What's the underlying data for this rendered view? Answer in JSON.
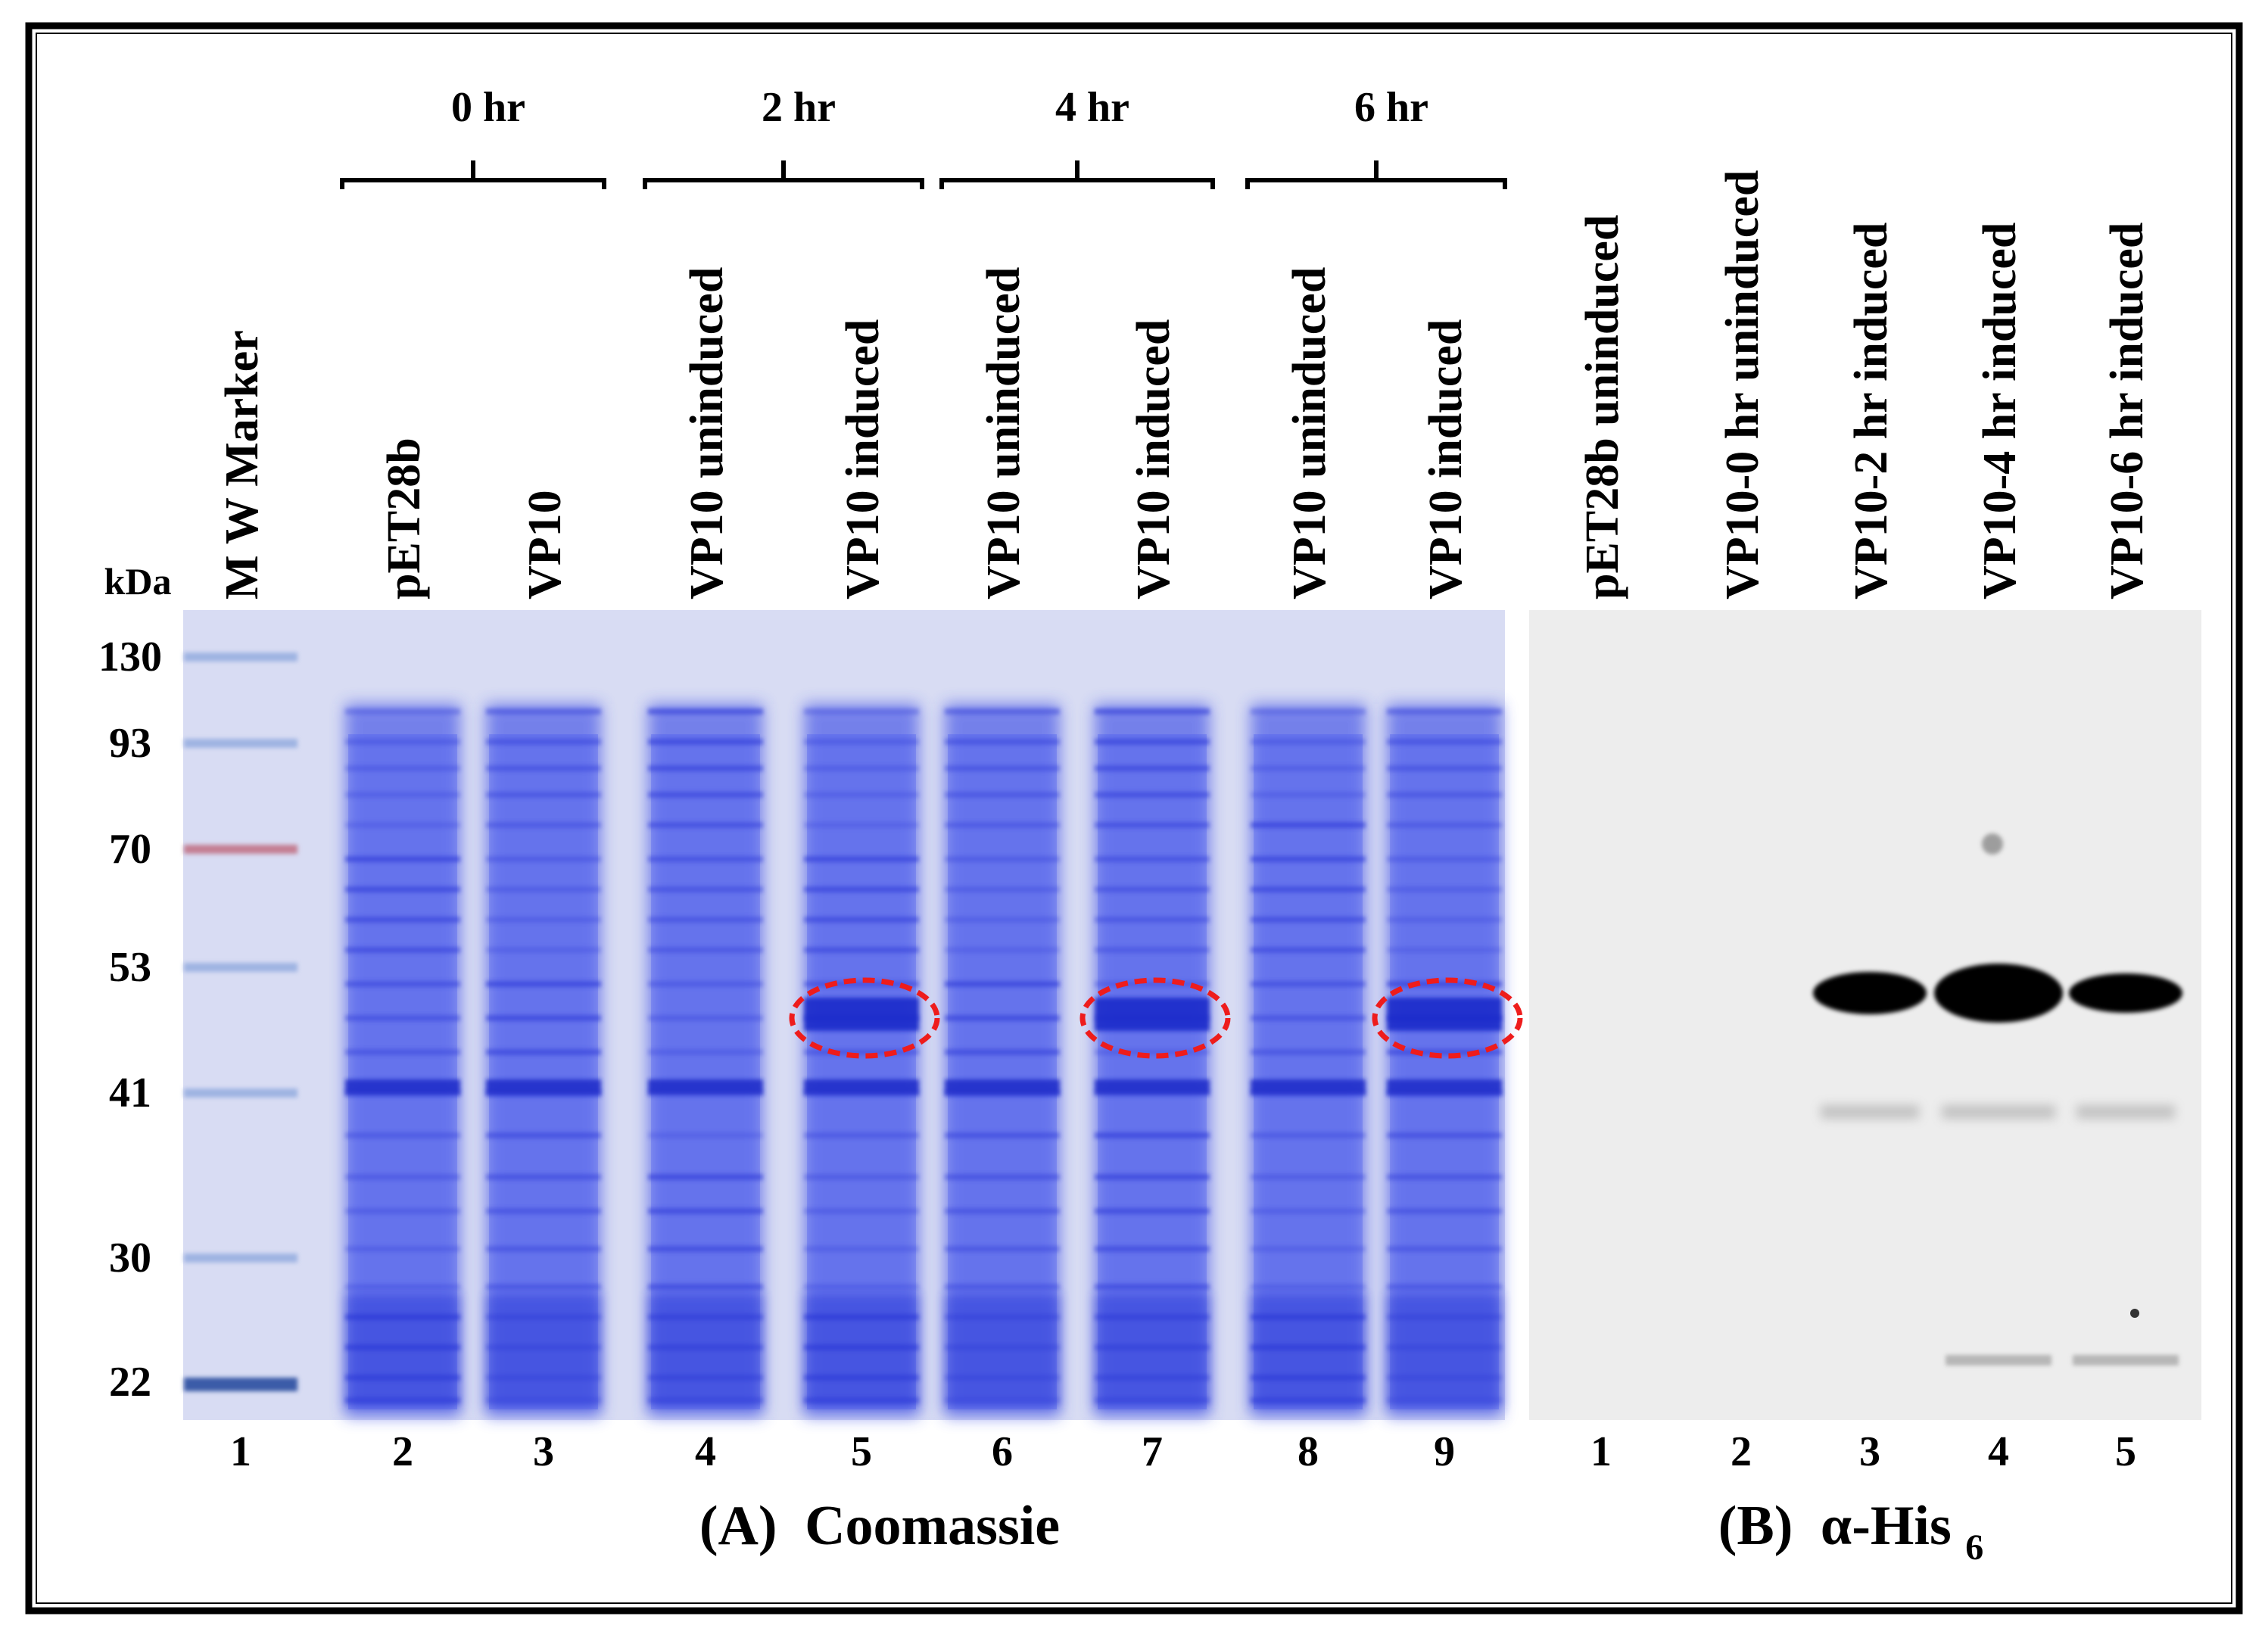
{
  "panel_a": {
    "timepoints": [
      {
        "label": "0 hr",
        "lanes": [
          2,
          3
        ]
      },
      {
        "label": "2 hr",
        "lanes": [
          4,
          5
        ]
      },
      {
        "label": "4 hr",
        "lanes": [
          6,
          7
        ]
      },
      {
        "label": "6 hr",
        "lanes": [
          8,
          9
        ]
      }
    ],
    "lanes": [
      {
        "number": "1",
        "label": "M W Marker"
      },
      {
        "number": "2",
        "label": "pET28b"
      },
      {
        "number": "3",
        "label": "VP10"
      },
      {
        "number": "4",
        "label": "VP10 uninduced"
      },
      {
        "number": "5",
        "label": "VP10 induced"
      },
      {
        "number": "6",
        "label": "VP10 uninduced"
      },
      {
        "number": "7",
        "label": "VP10 induced"
      },
      {
        "number": "8",
        "label": "VP10 uninduced"
      },
      {
        "number": "9",
        "label": "VP10 induced"
      }
    ],
    "highlighted_lanes": [
      5,
      7,
      9
    ],
    "highlight_color": "#ee1c1c",
    "stain_color": "#3848e6",
    "caption_prefix": "(A)",
    "caption_text": "Coomassie"
  },
  "panel_b": {
    "lanes": [
      {
        "number": "1",
        "label": "pET28b uninduced"
      },
      {
        "number": "2",
        "label": "VP10-0 hr uninduced"
      },
      {
        "number": "3",
        "label": "VP10-2 hr induced"
      },
      {
        "number": "4",
        "label": "VP10-4 hr induced"
      },
      {
        "number": "5",
        "label": "VP10-6 hr induced"
      }
    ],
    "caption_prefix": "(B)",
    "caption_main": "α-His",
    "caption_sub": "6"
  },
  "markers": {
    "unit": "kDa",
    "values": [
      "130",
      "93",
      "70",
      "53",
      "41",
      "30",
      "22"
    ]
  }
}
